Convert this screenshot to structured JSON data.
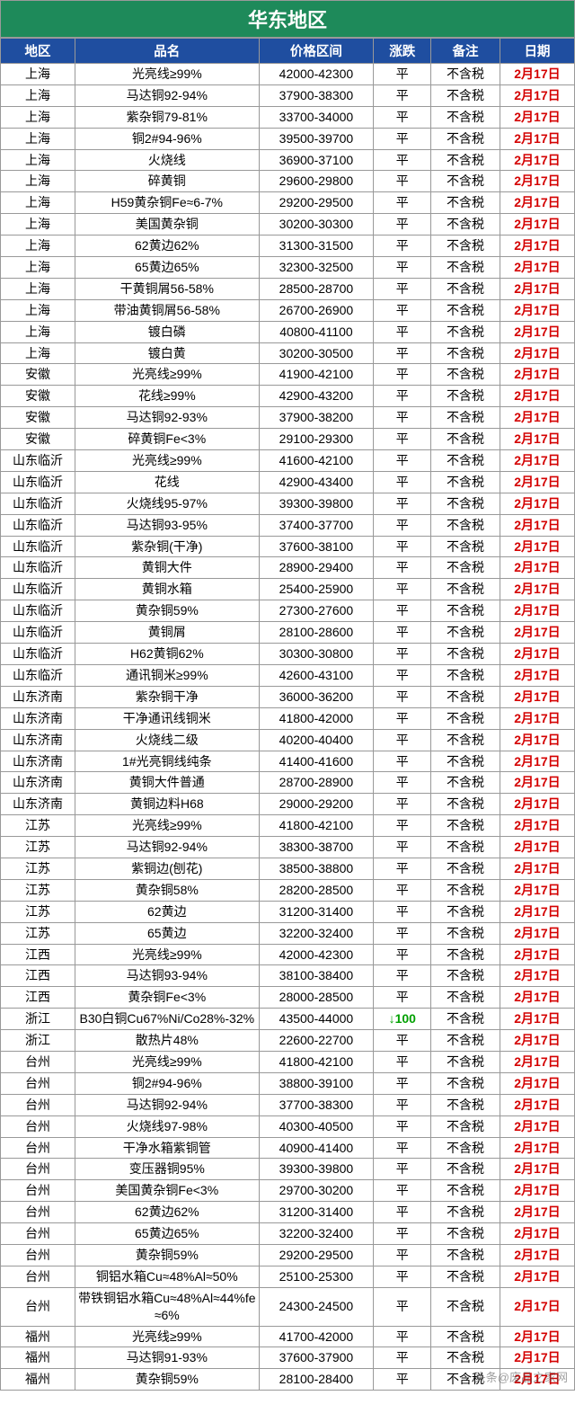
{
  "title": "华东地区",
  "colors": {
    "title_bg": "#1e8a5a",
    "title_fg": "#ffffff",
    "header_bg": "#1f4ea0",
    "header_fg": "#ffffff",
    "date_color": "#d40000",
    "down_color": "#00a000",
    "border": "#999999"
  },
  "columns": [
    {
      "key": "region",
      "label": "地区",
      "width": "13%"
    },
    {
      "key": "name",
      "label": "品名",
      "width": "32%"
    },
    {
      "key": "price",
      "label": "价格区间",
      "width": "20%"
    },
    {
      "key": "change",
      "label": "涨跌",
      "width": "10%"
    },
    {
      "key": "note",
      "label": "备注",
      "width": "12%"
    },
    {
      "key": "date",
      "label": "日期",
      "width": "13%"
    }
  ],
  "watermark": "头条@废品之家网",
  "rows": [
    {
      "region": "上海",
      "name": "光亮线≥99%",
      "price": "42000-42300",
      "change": "平",
      "note": "不含税",
      "date": "2月17日"
    },
    {
      "region": "上海",
      "name": "马达铜92-94%",
      "price": "37900-38300",
      "change": "平",
      "note": "不含税",
      "date": "2月17日"
    },
    {
      "region": "上海",
      "name": "紫杂铜79-81%",
      "price": "33700-34000",
      "change": "平",
      "note": "不含税",
      "date": "2月17日"
    },
    {
      "region": "上海",
      "name": "铜2#94-96%",
      "price": "39500-39700",
      "change": "平",
      "note": "不含税",
      "date": "2月17日"
    },
    {
      "region": "上海",
      "name": "火烧线",
      "price": "36900-37100",
      "change": "平",
      "note": "不含税",
      "date": "2月17日"
    },
    {
      "region": "上海",
      "name": "碎黄铜",
      "price": "29600-29800",
      "change": "平",
      "note": "不含税",
      "date": "2月17日"
    },
    {
      "region": "上海",
      "name": "H59黄杂铜Fe≈6-7%",
      "price": "29200-29500",
      "change": "平",
      "note": "不含税",
      "date": "2月17日"
    },
    {
      "region": "上海",
      "name": "美国黄杂铜",
      "price": "30200-30300",
      "change": "平",
      "note": "不含税",
      "date": "2月17日"
    },
    {
      "region": "上海",
      "name": "62黄边62%",
      "price": "31300-31500",
      "change": "平",
      "note": "不含税",
      "date": "2月17日"
    },
    {
      "region": "上海",
      "name": "65黄边65%",
      "price": "32300-32500",
      "change": "平",
      "note": "不含税",
      "date": "2月17日"
    },
    {
      "region": "上海",
      "name": "干黄铜屑56-58%",
      "price": "28500-28700",
      "change": "平",
      "note": "不含税",
      "date": "2月17日"
    },
    {
      "region": "上海",
      "name": "带油黄铜屑56-58%",
      "price": "26700-26900",
      "change": "平",
      "note": "不含税",
      "date": "2月17日"
    },
    {
      "region": "上海",
      "name": "镀白磷",
      "price": "40800-41100",
      "change": "平",
      "note": "不含税",
      "date": "2月17日"
    },
    {
      "region": "上海",
      "name": "镀白黄",
      "price": "30200-30500",
      "change": "平",
      "note": "不含税",
      "date": "2月17日"
    },
    {
      "region": "安徽",
      "name": "光亮线≥99%",
      "price": "41900-42100",
      "change": "平",
      "note": "不含税",
      "date": "2月17日"
    },
    {
      "region": "安徽",
      "name": "花线≥99%",
      "price": "42900-43200",
      "change": "平",
      "note": "不含税",
      "date": "2月17日"
    },
    {
      "region": "安徽",
      "name": "马达铜92-93%",
      "price": "37900-38200",
      "change": "平",
      "note": "不含税",
      "date": "2月17日"
    },
    {
      "region": "安徽",
      "name": "碎黄铜Fe<3%",
      "price": "29100-29300",
      "change": "平",
      "note": "不含税",
      "date": "2月17日"
    },
    {
      "region": "山东临沂",
      "name": "光亮线≥99%",
      "price": "41600-42100",
      "change": "平",
      "note": "不含税",
      "date": "2月17日"
    },
    {
      "region": "山东临沂",
      "name": "花线",
      "price": "42900-43400",
      "change": "平",
      "note": "不含税",
      "date": "2月17日"
    },
    {
      "region": "山东临沂",
      "name": "火烧线95-97%",
      "price": "39300-39800",
      "change": "平",
      "note": "不含税",
      "date": "2月17日"
    },
    {
      "region": "山东临沂",
      "name": "马达铜93-95%",
      "price": "37400-37700",
      "change": "平",
      "note": "不含税",
      "date": "2月17日"
    },
    {
      "region": "山东临沂",
      "name": "紫杂铜(干净)",
      "price": "37600-38100",
      "change": "平",
      "note": "不含税",
      "date": "2月17日"
    },
    {
      "region": "山东临沂",
      "name": "黄铜大件",
      "price": "28900-29400",
      "change": "平",
      "note": "不含税",
      "date": "2月17日"
    },
    {
      "region": "山东临沂",
      "name": "黄铜水箱",
      "price": "25400-25900",
      "change": "平",
      "note": "不含税",
      "date": "2月17日"
    },
    {
      "region": "山东临沂",
      "name": "黄杂铜59%",
      "price": "27300-27600",
      "change": "平",
      "note": "不含税",
      "date": "2月17日"
    },
    {
      "region": "山东临沂",
      "name": "黄铜屑",
      "price": "28100-28600",
      "change": "平",
      "note": "不含税",
      "date": "2月17日"
    },
    {
      "region": "山东临沂",
      "name": "H62黄铜62%",
      "price": "30300-30800",
      "change": "平",
      "note": "不含税",
      "date": "2月17日"
    },
    {
      "region": "山东临沂",
      "name": "通讯铜米≥99%",
      "price": "42600-43100",
      "change": "平",
      "note": "不含税",
      "date": "2月17日"
    },
    {
      "region": "山东济南",
      "name": "紫杂铜干净",
      "price": "36000-36200",
      "change": "平",
      "note": "不含税",
      "date": "2月17日"
    },
    {
      "region": "山东济南",
      "name": "干净通讯线铜米",
      "price": "41800-42000",
      "change": "平",
      "note": "不含税",
      "date": "2月17日"
    },
    {
      "region": "山东济南",
      "name": "火烧线二级",
      "price": "40200-40400",
      "change": "平",
      "note": "不含税",
      "date": "2月17日"
    },
    {
      "region": "山东济南",
      "name": "1#光亮铜线纯条",
      "price": "41400-41600",
      "change": "平",
      "note": "不含税",
      "date": "2月17日"
    },
    {
      "region": "山东济南",
      "name": "黄铜大件普通",
      "price": "28700-28900",
      "change": "平",
      "note": "不含税",
      "date": "2月17日"
    },
    {
      "region": "山东济南",
      "name": "黄铜边料H68",
      "price": "29000-29200",
      "change": "平",
      "note": "不含税",
      "date": "2月17日"
    },
    {
      "region": "江苏",
      "name": "光亮线≥99%",
      "price": "41800-42100",
      "change": "平",
      "note": "不含税",
      "date": "2月17日"
    },
    {
      "region": "江苏",
      "name": "马达铜92-94%",
      "price": "38300-38700",
      "change": "平",
      "note": "不含税",
      "date": "2月17日"
    },
    {
      "region": "江苏",
      "name": "紫铜边(刨花)",
      "price": "38500-38800",
      "change": "平",
      "note": "不含税",
      "date": "2月17日"
    },
    {
      "region": "江苏",
      "name": "黄杂铜58%",
      "price": "28200-28500",
      "change": "平",
      "note": "不含税",
      "date": "2月17日"
    },
    {
      "region": "江苏",
      "name": "62黄边",
      "price": "31200-31400",
      "change": "平",
      "note": "不含税",
      "date": "2月17日"
    },
    {
      "region": "江苏",
      "name": "65黄边",
      "price": "32200-32400",
      "change": "平",
      "note": "不含税",
      "date": "2月17日"
    },
    {
      "region": "江西",
      "name": "光亮线≥99%",
      "price": "42000-42300",
      "change": "平",
      "note": "不含税",
      "date": "2月17日"
    },
    {
      "region": "江西",
      "name": "马达铜93-94%",
      "price": "38100-38400",
      "change": "平",
      "note": "不含税",
      "date": "2月17日"
    },
    {
      "region": "江西",
      "name": "黄杂铜Fe<3%",
      "price": "28000-28500",
      "change": "平",
      "note": "不含税",
      "date": "2月17日"
    },
    {
      "region": "浙江",
      "name": "B30白铜Cu67%Ni/Co28%-32%",
      "price": "43500-44000",
      "change": "↓100",
      "change_dir": "down",
      "note": "不含税",
      "date": "2月17日"
    },
    {
      "region": "浙江",
      "name": "散热片48%",
      "price": "22600-22700",
      "change": "平",
      "note": "不含税",
      "date": "2月17日"
    },
    {
      "region": "台州",
      "name": "光亮线≥99%",
      "price": "41800-42100",
      "change": "平",
      "note": "不含税",
      "date": "2月17日"
    },
    {
      "region": "台州",
      "name": "铜2#94-96%",
      "price": "38800-39100",
      "change": "平",
      "note": "不含税",
      "date": "2月17日"
    },
    {
      "region": "台州",
      "name": "马达铜92-94%",
      "price": "37700-38300",
      "change": "平",
      "note": "不含税",
      "date": "2月17日"
    },
    {
      "region": "台州",
      "name": "火烧线97-98%",
      "price": "40300-40500",
      "change": "平",
      "note": "不含税",
      "date": "2月17日"
    },
    {
      "region": "台州",
      "name": "干净水箱紫铜管",
      "price": "40900-41400",
      "change": "平",
      "note": "不含税",
      "date": "2月17日"
    },
    {
      "region": "台州",
      "name": "变压器铜95%",
      "price": "39300-39800",
      "change": "平",
      "note": "不含税",
      "date": "2月17日"
    },
    {
      "region": "台州",
      "name": "美国黄杂铜Fe<3%",
      "price": "29700-30200",
      "change": "平",
      "note": "不含税",
      "date": "2月17日"
    },
    {
      "region": "台州",
      "name": "62黄边62%",
      "price": "31200-31400",
      "change": "平",
      "note": "不含税",
      "date": "2月17日"
    },
    {
      "region": "台州",
      "name": "65黄边65%",
      "price": "32200-32400",
      "change": "平",
      "note": "不含税",
      "date": "2月17日"
    },
    {
      "region": "台州",
      "name": "黄杂铜59%",
      "price": "29200-29500",
      "change": "平",
      "note": "不含税",
      "date": "2月17日"
    },
    {
      "region": "台州",
      "name": "铜铝水箱Cu≈48%Al≈50%",
      "price": "25100-25300",
      "change": "平",
      "note": "不含税",
      "date": "2月17日"
    },
    {
      "region": "台州",
      "name": "带铁铜铝水箱Cu≈48%Al≈44%fe≈6%",
      "price": "24300-24500",
      "change": "平",
      "note": "不含税",
      "date": "2月17日"
    },
    {
      "region": "福州",
      "name": "光亮线≥99%",
      "price": "41700-42000",
      "change": "平",
      "note": "不含税",
      "date": "2月17日"
    },
    {
      "region": "福州",
      "name": "马达铜91-93%",
      "price": "37600-37900",
      "change": "平",
      "note": "不含税",
      "date": "2月17日"
    },
    {
      "region": "福州",
      "name": "黄杂铜59%",
      "price": "28100-28400",
      "change": "平",
      "note": "不含税",
      "date": "2月17日"
    }
  ]
}
